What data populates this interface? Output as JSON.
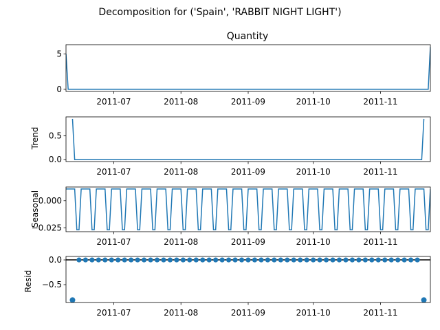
{
  "figure": {
    "suptitle": "Decomposition for ('Spain', 'RABBIT NIGHT LIGHT')"
  },
  "colors": {
    "line": "#1f77b4",
    "axis": "#000000",
    "background": "#ffffff"
  },
  "chart_data": [
    {
      "type": "line",
      "title": "Quantity",
      "ylabel": "",
      "x_range": [
        "2011-06-09",
        "2011-11-24"
      ],
      "ylim": [
        -0.3,
        6.3
      ],
      "yticks": [
        {
          "value": 0,
          "label": "0"
        },
        {
          "value": 5,
          "label": "5"
        }
      ],
      "xticks": [
        "2011-07",
        "2011-08",
        "2011-09",
        "2011-10",
        "2011-11"
      ],
      "series": [
        {
          "points": [
            {
              "x": "2011-06-09",
              "y": 5
            },
            {
              "x": "2011-06-10",
              "y": 0
            },
            {
              "x": "2011-11-23",
              "y": 0
            },
            {
              "x": "2011-11-24",
              "y": 6
            }
          ]
        }
      ]
    },
    {
      "type": "line",
      "title": "",
      "ylabel": "Trend",
      "x_range": [
        "2011-06-09",
        "2011-11-24"
      ],
      "ylim": [
        -0.04,
        0.9
      ],
      "yticks": [
        {
          "value": 0,
          "label": "0.0"
        },
        {
          "value": 0.5,
          "label": "0.5"
        }
      ],
      "xticks": [
        "2011-07",
        "2011-08",
        "2011-09",
        "2011-10",
        "2011-11"
      ],
      "series": [
        {
          "points": [
            {
              "x": "2011-06-12",
              "y": 0.857
            },
            {
              "x": "2011-06-13",
              "y": 0
            },
            {
              "x": "2011-11-20",
              "y": 0
            },
            {
              "x": "2011-11-21",
              "y": 0.857
            }
          ]
        }
      ]
    },
    {
      "type": "line",
      "title": "",
      "ylabel": "Seasonal",
      "x_range": [
        "2011-06-09",
        "2011-11-24"
      ],
      "ylim": [
        -0.0285,
        0.0125
      ],
      "yticks": [
        {
          "value": 0,
          "label": "0.000"
        },
        {
          "value": -0.025,
          "label": "−0.025"
        }
      ],
      "xticks": [
        "2011-07",
        "2011-08",
        "2011-09",
        "2011-10",
        "2011-11"
      ],
      "seasonal_period_days": 7,
      "seasonal_pattern": [
        0.0107,
        0.0107,
        0.0107,
        0.0107,
        0.0107,
        -0.0268,
        -0.0268
      ],
      "series": [
        {
          "start": "2011-06-09",
          "end": "2011-11-24"
        }
      ]
    },
    {
      "type": "scatter",
      "title": "",
      "ylabel": "Resid",
      "x_range": [
        "2011-06-09",
        "2011-11-24"
      ],
      "ylim": [
        -0.86,
        0.07
      ],
      "yticks": [
        {
          "value": 0,
          "label": "0.0"
        },
        {
          "value": -0.5,
          "label": "−0.5"
        }
      ],
      "xticks": [
        "2011-07",
        "2011-08",
        "2011-09",
        "2011-10",
        "2011-11"
      ],
      "baseline": 0,
      "marker_interval_days": 3,
      "series": [
        {
          "start": "2011-06-12",
          "end": "2011-11-21",
          "value": 0,
          "outliers": [
            {
              "x": "2011-06-12",
              "y": -0.81
            },
            {
              "x": "2011-11-21",
              "y": -0.81
            }
          ]
        }
      ]
    }
  ]
}
